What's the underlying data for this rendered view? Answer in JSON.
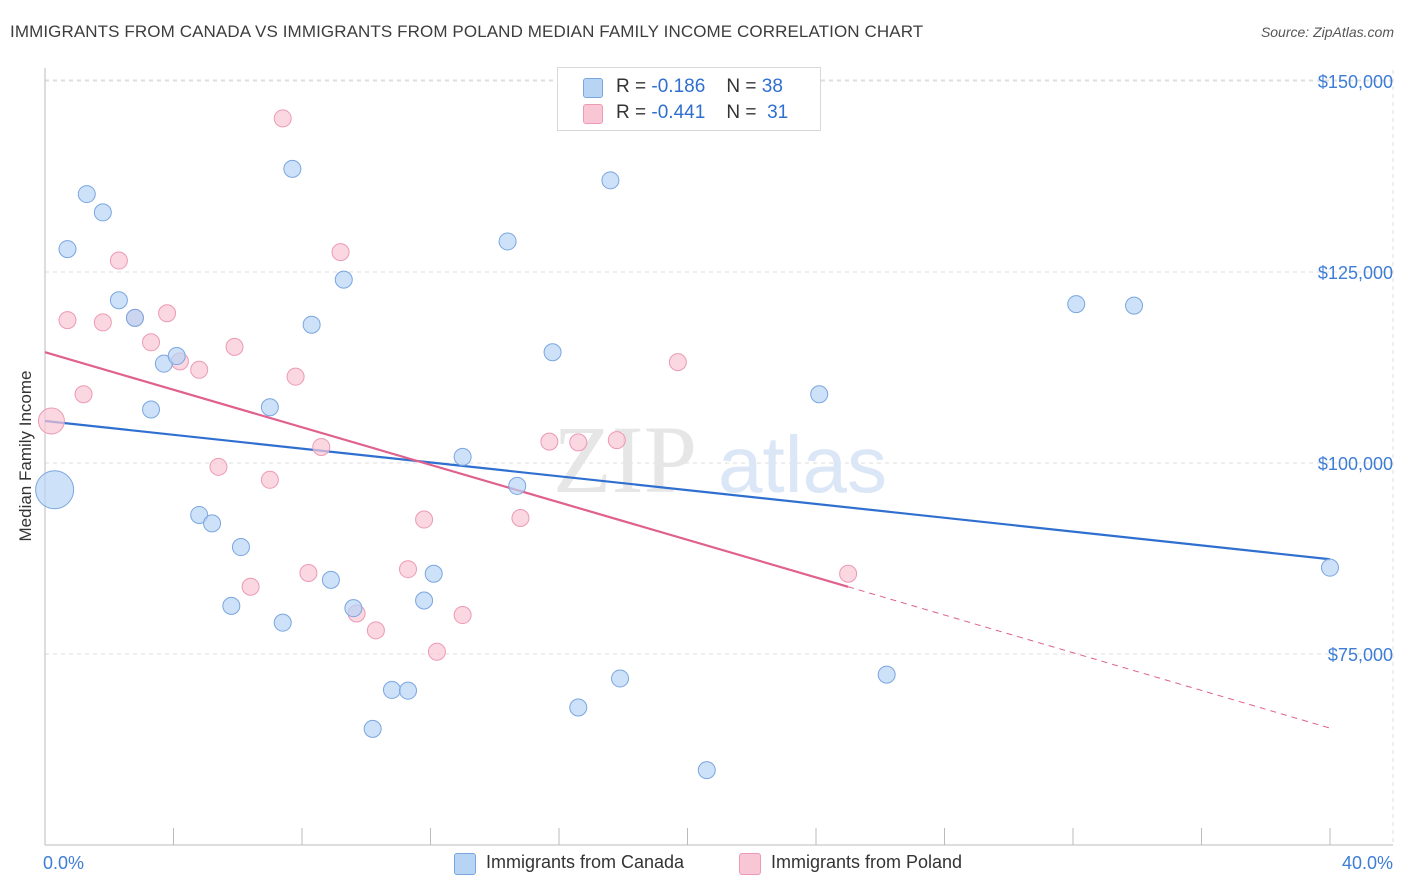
{
  "header": {
    "title": "IMMIGRANTS FROM CANADA VS IMMIGRANTS FROM POLAND MEDIAN FAMILY INCOME CORRELATION CHART",
    "source": "Source: ZipAtlas.com"
  },
  "stats": {
    "canada": {
      "r_label": "R =",
      "r_value": "-0.186",
      "n_label": "N =",
      "n_value": "38"
    },
    "poland": {
      "r_label": "R =",
      "r_value": "-0.441",
      "n_label": "N =",
      "n_value": "31"
    }
  },
  "legend": {
    "canada": "Immigrants from Canada",
    "poland": "Immigrants from Poland"
  },
  "watermark": {
    "zip": "ZIP",
    "atlas": "atlas"
  },
  "colors": {
    "canada_fill": "#b8d4f5",
    "canada_stroke": "#7aa6e0",
    "canada_line": "#2f6fd0",
    "poland_fill": "#f9c6d6",
    "poland_stroke": "#ec9ab5",
    "poland_line": "#e0608e",
    "tick_label": "#3e7dd6",
    "grid": "#dddddd"
  },
  "chart_data": {
    "type": "scatter",
    "title": "IMMIGRANTS FROM CANADA VS IMMIGRANTS FROM POLAND MEDIAN FAMILY INCOME CORRELATION CHART",
    "xlabel": "",
    "ylabel": "Median Family Income",
    "xlim": [
      0,
      40
    ],
    "ylim": [
      52000,
      153000
    ],
    "x_tick_labels": [
      "0.0%",
      "40.0%"
    ],
    "y_ticks": [
      75000,
      100000,
      125000,
      150000
    ],
    "y_tick_labels": [
      "$75,000",
      "$100,000",
      "$125,000",
      "$150,000"
    ],
    "grid": true,
    "legend_position": "bottom",
    "series": [
      {
        "name": "Immigrants from Canada",
        "color": "#7aa6e0",
        "points": [
          {
            "x": 0.3,
            "y": 96500,
            "size": "large"
          },
          {
            "x": 0.7,
            "y": 128000
          },
          {
            "x": 1.3,
            "y": 135200
          },
          {
            "x": 1.8,
            "y": 132800
          },
          {
            "x": 2.3,
            "y": 121300
          },
          {
            "x": 2.8,
            "y": 119000
          },
          {
            "x": 3.3,
            "y": 107000
          },
          {
            "x": 3.7,
            "y": 113000
          },
          {
            "x": 4.1,
            "y": 114000
          },
          {
            "x": 4.8,
            "y": 93200
          },
          {
            "x": 5.2,
            "y": 92100
          },
          {
            "x": 6.1,
            "y": 89000
          },
          {
            "x": 5.8,
            "y": 81300
          },
          {
            "x": 7.0,
            "y": 107300
          },
          {
            "x": 7.4,
            "y": 79100
          },
          {
            "x": 7.7,
            "y": 138500
          },
          {
            "x": 8.3,
            "y": 118100
          },
          {
            "x": 8.9,
            "y": 84700
          },
          {
            "x": 9.3,
            "y": 124000
          },
          {
            "x": 9.6,
            "y": 81000
          },
          {
            "x": 10.2,
            "y": 65200
          },
          {
            "x": 10.8,
            "y": 70300
          },
          {
            "x": 11.3,
            "y": 70200
          },
          {
            "x": 11.8,
            "y": 82000
          },
          {
            "x": 12.1,
            "y": 85500
          },
          {
            "x": 13.0,
            "y": 100800
          },
          {
            "x": 14.4,
            "y": 129000
          },
          {
            "x": 14.7,
            "y": 97000
          },
          {
            "x": 15.8,
            "y": 114500
          },
          {
            "x": 16.6,
            "y": 68000
          },
          {
            "x": 17.6,
            "y": 137000
          },
          {
            "x": 17.9,
            "y": 71800
          },
          {
            "x": 20.6,
            "y": 59800
          },
          {
            "x": 24.1,
            "y": 109000
          },
          {
            "x": 26.2,
            "y": 72300
          },
          {
            "x": 32.1,
            "y": 120800
          },
          {
            "x": 33.9,
            "y": 120600
          },
          {
            "x": 40.0,
            "y": 86300
          }
        ],
        "trend": {
          "x0": 0,
          "y0": 105500,
          "x1": 40,
          "y1": 87400
        }
      },
      {
        "name": "Immigrants from Poland",
        "color": "#ec9ab5",
        "points": [
          {
            "x": 0.2,
            "y": 105500,
            "size": "medium"
          },
          {
            "x": 0.7,
            "y": 118700
          },
          {
            "x": 1.2,
            "y": 109000
          },
          {
            "x": 1.8,
            "y": 118400
          },
          {
            "x": 2.3,
            "y": 126500
          },
          {
            "x": 2.8,
            "y": 119000
          },
          {
            "x": 3.3,
            "y": 115800
          },
          {
            "x": 3.8,
            "y": 119600
          },
          {
            "x": 4.2,
            "y": 113300
          },
          {
            "x": 4.8,
            "y": 112200
          },
          {
            "x": 5.4,
            "y": 99500
          },
          {
            "x": 5.9,
            "y": 115200
          },
          {
            "x": 6.4,
            "y": 83800
          },
          {
            "x": 7.0,
            "y": 97800
          },
          {
            "x": 7.4,
            "y": 145100
          },
          {
            "x": 7.8,
            "y": 111300
          },
          {
            "x": 8.2,
            "y": 85600
          },
          {
            "x": 8.6,
            "y": 102100
          },
          {
            "x": 9.2,
            "y": 127600
          },
          {
            "x": 9.7,
            "y": 80300
          },
          {
            "x": 10.3,
            "y": 78100
          },
          {
            "x": 11.3,
            "y": 86100
          },
          {
            "x": 11.8,
            "y": 92600
          },
          {
            "x": 12.2,
            "y": 75300
          },
          {
            "x": 13.0,
            "y": 80100
          },
          {
            "x": 14.8,
            "y": 92800
          },
          {
            "x": 15.7,
            "y": 102800
          },
          {
            "x": 16.6,
            "y": 102700
          },
          {
            "x": 17.8,
            "y": 103000
          },
          {
            "x": 19.7,
            "y": 113200
          },
          {
            "x": 25.0,
            "y": 85500
          }
        ],
        "trend": {
          "x0": 0,
          "y0": 114500,
          "x1": 25.0,
          "y1": 83800
        },
        "trend_extension": {
          "x0": 25.0,
          "y0": 83800,
          "x1": 40,
          "y1": 65300
        }
      }
    ]
  }
}
